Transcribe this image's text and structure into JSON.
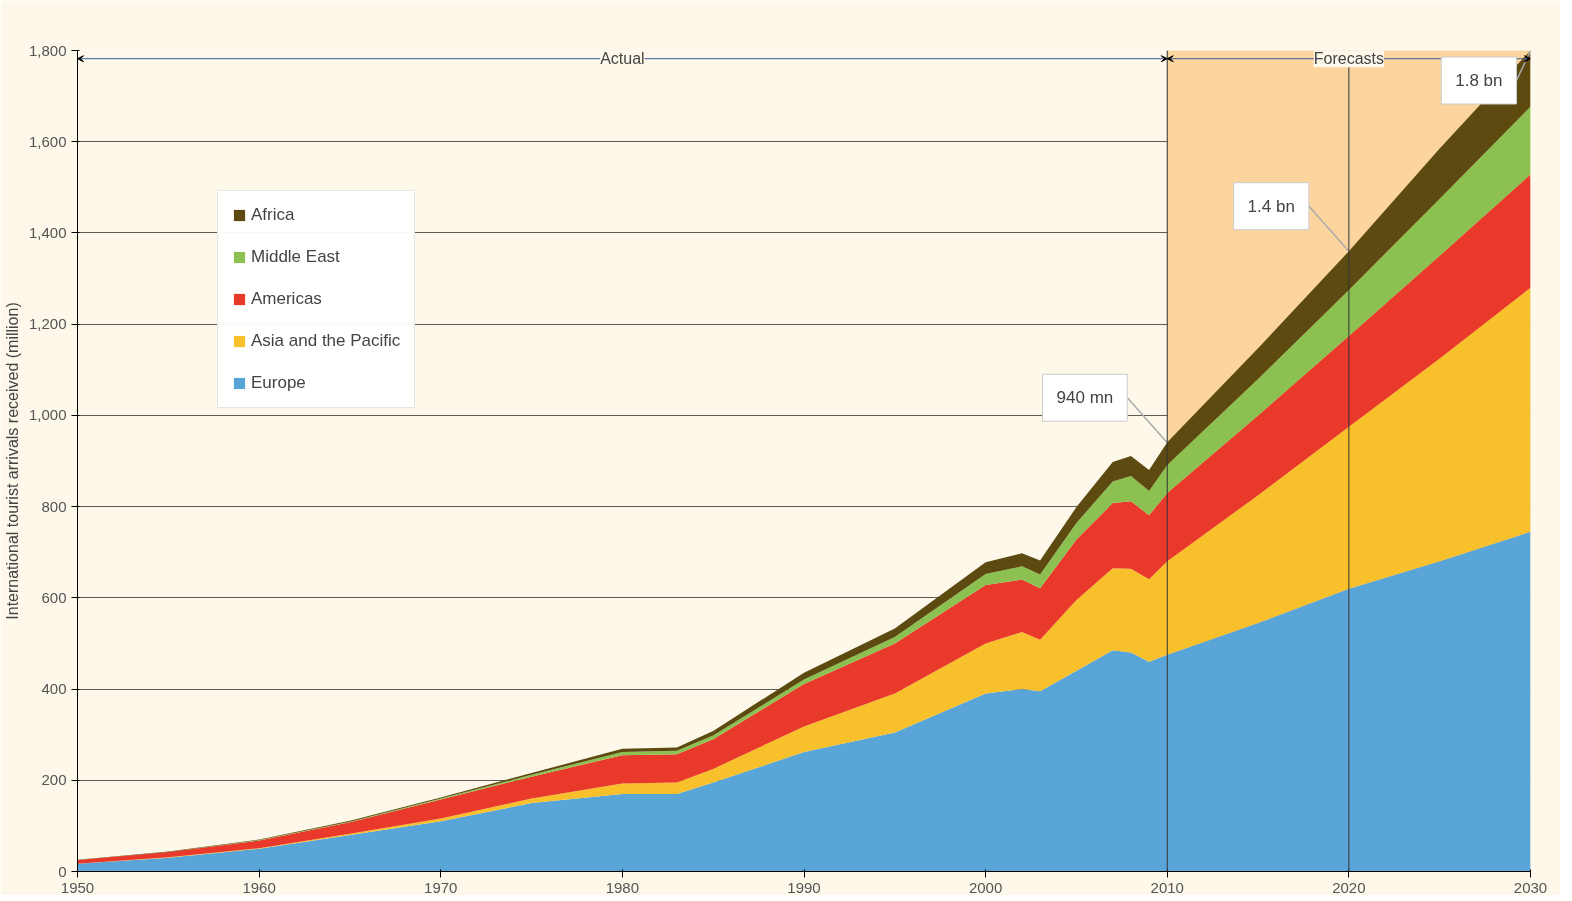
{
  "chart_data": {
    "type": "area",
    "stacked": true,
    "ylabel": "International tourist arrivals received (million)",
    "x": [
      1950,
      1955,
      1960,
      1965,
      1970,
      1975,
      1980,
      1983,
      1985,
      1990,
      1995,
      2000,
      2002,
      2003,
      2005,
      2007,
      2008,
      2009,
      2010,
      2015,
      2020,
      2025,
      2030
    ],
    "series": [
      {
        "name": "Europe",
        "color": "#5aa5d8",
        "values": [
          17,
          30,
          50,
          80,
          110,
          150,
          170,
          170,
          195,
          262,
          305,
          390,
          400,
          395,
          440,
          485,
          480,
          460,
          475,
          545,
          620,
          680,
          745
        ]
      },
      {
        "name": "Asia and the Pacific",
        "color": "#f8c12c",
        "values": [
          0,
          1,
          1,
          3,
          6,
          10,
          23,
          25,
          30,
          56,
          85,
          110,
          125,
          113,
          155,
          180,
          184,
          181,
          205,
          280,
          355,
          445,
          535
        ]
      },
      {
        "name": "Americas",
        "color": "#e8392a",
        "values": [
          8,
          12,
          17,
          25,
          42,
          48,
          62,
          62,
          65,
          93,
          110,
          128,
          115,
          113,
          133,
          143,
          148,
          140,
          150,
          175,
          199,
          225,
          248
        ]
      },
      {
        "name": "Middle East",
        "color": "#8cc152",
        "values": [
          0,
          0,
          1,
          1,
          2,
          4,
          7,
          8,
          8,
          10,
          14,
          24,
          29,
          30,
          36,
          47,
          55,
          53,
          61,
          80,
          101,
          125,
          149
        ]
      },
      {
        "name": "Africa",
        "color": "#5c4a10",
        "values": [
          1,
          1,
          1,
          2,
          2,
          4,
          7,
          7,
          10,
          15,
          19,
          26,
          29,
          31,
          35,
          43,
          44,
          46,
          50,
          67,
          85,
          110,
          123
        ]
      }
    ],
    "xlim": [
      1950,
      2030
    ],
    "xticks": [
      1950,
      1960,
      1970,
      1980,
      1990,
      2000,
      2010,
      2020,
      2030
    ],
    "ylim": [
      0,
      1800
    ],
    "yticks": [
      0,
      {
        "value": 200,
        "label": "200"
      },
      {
        "value": 400,
        "label": "400"
      },
      {
        "value": 600,
        "label": "600"
      },
      {
        "value": 800,
        "label": "800"
      },
      {
        "value": 1000,
        "label": "1,000"
      },
      {
        "value": 1200,
        "label": "1,200"
      },
      {
        "value": 1400,
        "label": "1,400"
      },
      {
        "value": 1600,
        "label": "1,600"
      },
      {
        "value": 1800,
        "label": "1,800"
      }
    ],
    "grid": "y",
    "legend": "top left",
    "bands": [
      {
        "axis": "x",
        "from": 2010,
        "to": 2030,
        "label": "Forecasts",
        "color": "#fbd59d"
      }
    ],
    "ref_lines": [
      {
        "axis": "x",
        "value": 2010
      },
      {
        "axis": "x",
        "value": 2020
      }
    ],
    "annotations": [
      "Actual",
      {
        "text": "940 mn",
        "x": 2010,
        "y": 940
      },
      {
        "text": "1.4 bn",
        "x": 2020,
        "y": 1360
      },
      {
        "text": "1.8 bn",
        "x": 2030,
        "y": 1800
      }
    ]
  }
}
